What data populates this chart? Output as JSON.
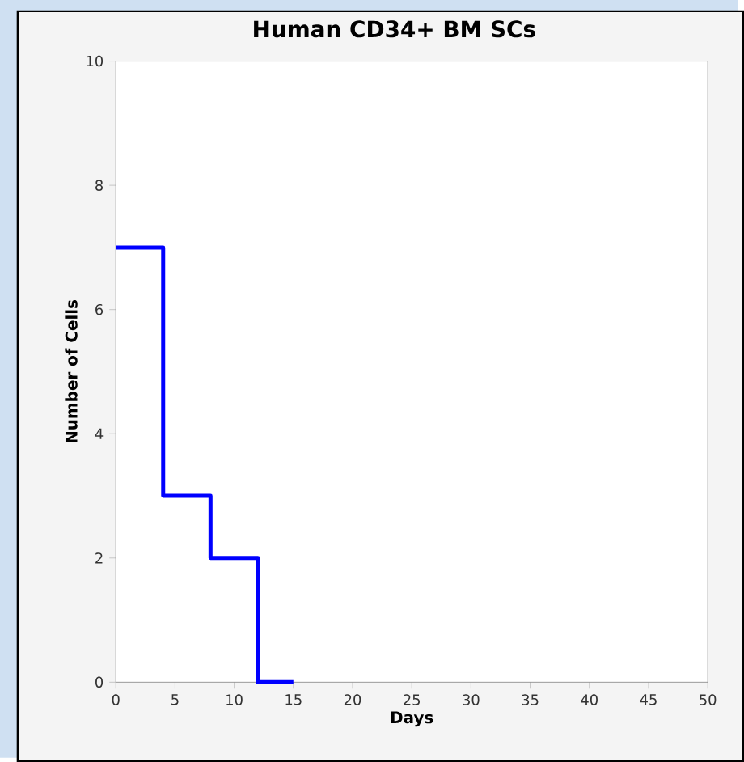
{
  "chart_data": {
    "type": "step",
    "title": "Human CD34+ BM SCs",
    "xlabel": "Days",
    "ylabel": "Number of Cells",
    "x": [
      0,
      4,
      8,
      12,
      15
    ],
    "values": [
      7,
      3,
      2,
      0,
      0
    ],
    "color": "#0000ff",
    "xlim": [
      0,
      50
    ],
    "xticks": [
      0,
      5,
      10,
      15,
      20,
      25,
      30,
      35,
      40,
      45,
      50
    ],
    "ylim": [
      0,
      10
    ],
    "yticks": [
      0,
      2,
      4,
      6,
      8,
      10
    ],
    "grid": false
  }
}
